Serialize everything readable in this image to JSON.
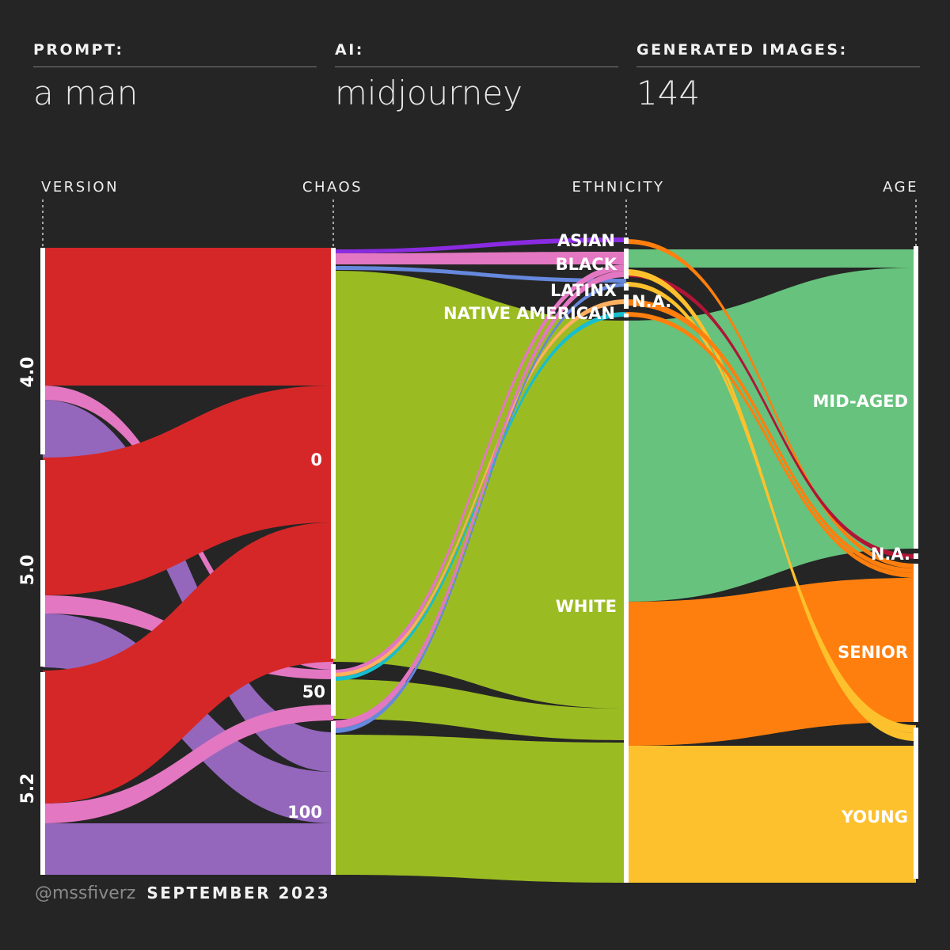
{
  "header": {
    "prompt_label": "PROMPT:",
    "prompt_value": "a man",
    "ai_label": "AI:",
    "ai_value": "midjourney",
    "images_label": "GENERATED IMAGES:",
    "images_value": "144"
  },
  "footer": {
    "handle": "@mssfiverz",
    "date": "SEPTEMBER 2023"
  },
  "chart_data": {
    "type": "sankey",
    "total": 144,
    "dimensions": [
      "VERSION",
      "CHAOS",
      "ETHNICITY",
      "AGE"
    ],
    "nodes": {
      "VERSION": [
        {
          "label": "4.0",
          "value": 48
        },
        {
          "label": "5.0",
          "value": 48
        },
        {
          "label": "5.2",
          "value": 48
        }
      ],
      "CHAOS": [
        {
          "label": "0",
          "value": 96
        },
        {
          "label": "50",
          "value": 24
        },
        {
          "label": "100",
          "value": 24
        }
      ],
      "ETHNICITY": [
        {
          "label": "ASIAN",
          "value": 1
        },
        {
          "label": "BLACK",
          "value": 3
        },
        {
          "label": "LATINX",
          "value": 1
        },
        {
          "label": "N.A.",
          "value": 2
        },
        {
          "label": "NATIVE AMERICAN",
          "value": 1
        },
        {
          "label": "WHITE",
          "value": 136
        }
      ],
      "AGE": [
        {
          "label": "",
          "value": 4
        },
        {
          "label": "MID-AGED",
          "value": 75
        },
        {
          "label": "N.A.",
          "value": 3
        },
        {
          "label": "SENIOR",
          "value": 35
        },
        {
          "label": "YOUNG",
          "value": 27
        }
      ]
    },
    "colors": {
      "red": "#d62728",
      "purple": "#9467bd",
      "pink": "#e377c2",
      "yellowgreen": "#9bbb22",
      "green": "#66c27c",
      "orange": "#ff7f0e",
      "gold": "#fdc12d",
      "violet": "#8a2be2",
      "blue": "#6688dd",
      "cyan": "#17becf",
      "lightorange": "#ffb060",
      "crimson": "#b01535"
    }
  }
}
